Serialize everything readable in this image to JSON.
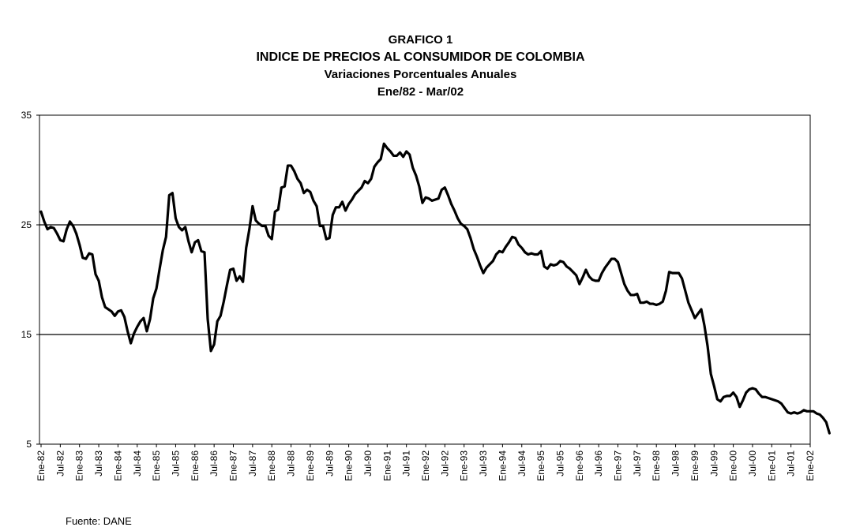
{
  "chart_data": {
    "type": "line",
    "title": "GRAFICO 1",
    "subtitle_lines": [
      "INDICE DE PRECIOS AL CONSUMIDOR DE COLOMBIA",
      "Variaciones Porcentuales Anuales",
      "Ene/82  -  Mar/02"
    ],
    "ylim": [
      5,
      35
    ],
    "y_ticks": [
      5,
      15,
      25,
      35
    ],
    "horizontal_grid_at": [
      15,
      25
    ],
    "x_tick_labels": [
      "Ene-82",
      "Jul-82",
      "Ene-83",
      "Jul-83",
      "Ene-84",
      "Jul-84",
      "Ene-85",
      "Jul-85",
      "Ene-86",
      "Jul-86",
      "Ene-87",
      "Jul-87",
      "Ene-88",
      "Jul-88",
      "Ene-89",
      "Jul-89",
      "Ene-90",
      "Jul-90",
      "Ene-91",
      "Jul-91",
      "Ene-92",
      "Jul-92",
      "Ene-93",
      "Jul-93",
      "Ene-94",
      "Jul-94",
      "Ene-95",
      "Jul-95",
      "Ene-96",
      "Jul-96",
      "Ene-97",
      "Jul-97",
      "Ene-98",
      "Jul-98",
      "Ene-99",
      "Jul-99",
      "Ene-00",
      "Jul-00",
      "Ene-01",
      "Jul-01",
      "Ene-02"
    ],
    "series": [
      {
        "x_start": "Ene-82",
        "x_end": "Mar-02",
        "values": [
          26.2,
          25.3,
          24.6,
          24.8,
          24.7,
          24.2,
          23.6,
          23.5,
          24.6,
          25.3,
          24.9,
          24.2,
          23.2,
          22.0,
          21.9,
          22.4,
          22.3,
          20.5,
          19.9,
          18.4,
          17.5,
          17.3,
          17.1,
          16.7,
          17.1,
          17.2,
          16.6,
          15.3,
          14.2,
          15.1,
          15.7,
          16.2,
          16.5,
          15.3,
          16.4,
          18.3,
          19.2,
          21.0,
          22.7,
          23.9,
          27.7,
          27.9,
          25.6,
          24.8,
          24.5,
          24.8,
          23.5,
          22.5,
          23.4,
          23.6,
          22.6,
          22.5,
          16.4,
          13.5,
          14.1,
          16.2,
          16.7,
          18.0,
          19.5,
          20.9,
          21.0,
          19.9,
          20.3,
          19.8,
          22.9,
          24.6,
          26.7,
          25.4,
          25.1,
          24.9,
          24.9,
          24.0,
          23.7,
          26.2,
          26.4,
          28.4,
          28.5,
          30.4,
          30.4,
          29.9,
          29.2,
          28.8,
          27.9,
          28.2,
          28.0,
          27.2,
          26.7,
          24.9,
          24.9,
          23.7,
          23.8,
          25.9,
          26.6,
          26.6,
          27.1,
          26.3,
          26.9,
          27.3,
          27.8,
          28.1,
          28.4,
          29.0,
          28.8,
          29.2,
          30.3,
          30.7,
          31.0,
          32.4,
          32.0,
          31.7,
          31.3,
          31.3,
          31.6,
          31.2,
          31.7,
          31.4,
          30.2,
          29.5,
          28.5,
          27.0,
          27.5,
          27.4,
          27.2,
          27.3,
          27.4,
          28.2,
          28.4,
          27.7,
          26.9,
          26.3,
          25.6,
          25.1,
          24.9,
          24.6,
          23.8,
          22.8,
          22.1,
          21.3,
          20.6,
          21.1,
          21.4,
          21.7,
          22.3,
          22.6,
          22.5,
          23.0,
          23.4,
          23.9,
          23.8,
          23.2,
          22.9,
          22.5,
          22.3,
          22.4,
          22.3,
          22.3,
          22.6,
          21.2,
          21.0,
          21.4,
          21.3,
          21.4,
          21.7,
          21.6,
          21.2,
          21.0,
          20.7,
          20.4,
          19.6,
          20.2,
          20.9,
          20.3,
          20.0,
          19.9,
          19.9,
          20.6,
          21.1,
          21.5,
          21.9,
          21.9,
          21.6,
          20.6,
          19.6,
          19.0,
          18.6,
          18.6,
          18.7,
          17.9,
          17.9,
          18.0,
          17.8,
          17.8,
          17.7,
          17.8,
          18.0,
          19.0,
          20.7,
          20.6,
          20.6,
          20.6,
          20.1,
          19.0,
          17.9,
          17.2,
          16.5,
          16.9,
          17.3,
          15.8,
          13.9,
          11.4,
          10.3,
          9.1,
          8.9,
          9.3,
          9.4,
          9.4,
          9.7,
          9.3,
          8.4,
          9.0,
          9.7,
          10.0,
          10.1,
          10.0,
          9.6,
          9.3,
          9.3,
          9.2,
          9.1,
          9.0,
          8.9,
          8.7,
          8.3,
          7.9,
          7.8,
          7.9,
          7.8,
          7.9,
          8.1,
          8.0,
          8.0,
          8.0,
          7.8,
          7.7,
          7.4,
          7.0,
          6.0
        ]
      }
    ],
    "source": "Fuente: DANE"
  }
}
